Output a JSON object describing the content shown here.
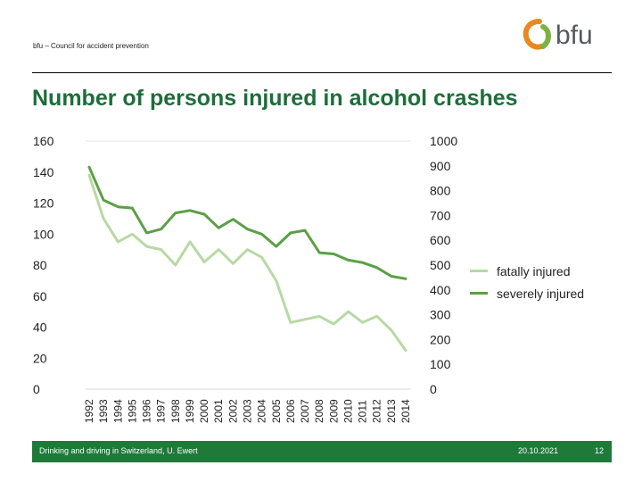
{
  "header": {
    "org_name": "bfu – Council for accident prevention",
    "logo_text": "bfu",
    "title": "Number of persons injured in alcohol crashes"
  },
  "footer": {
    "source": "Drinking and driving in Switzerland, U. Ewert",
    "date": "20.10.2021",
    "page": "12"
  },
  "colors": {
    "fatally": "#b8d9a4",
    "severely": "#5aa046",
    "title": "#1d6e3a",
    "footer": "#1f7a3a",
    "logo_orange": "#e8891e",
    "logo_green": "#7bb342"
  },
  "chart_data": {
    "type": "line",
    "title": "Number of persons injured in alcohol crashes",
    "x": [
      "1992",
      "1993",
      "1994",
      "1995",
      "1996",
      "1997",
      "1998",
      "1999",
      "2000",
      "2001",
      "2002",
      "2003",
      "2004",
      "2005",
      "2006",
      "2007",
      "2008",
      "2009",
      "2010",
      "2011",
      "2012",
      "2013",
      "2014"
    ],
    "left_axis": {
      "ticks": [
        0,
        20,
        40,
        60,
        80,
        100,
        120,
        140,
        160
      ],
      "ylim": [
        0,
        160
      ]
    },
    "right_axis": {
      "ticks": [
        0,
        100,
        200,
        300,
        400,
        500,
        600,
        700,
        800,
        900,
        1000
      ],
      "ylim": [
        0,
        1000
      ]
    },
    "series": [
      {
        "name": "fatally injured",
        "axis": "left",
        "color": "#b8d9a4",
        "values": [
          138,
          110,
          95,
          100,
          92,
          90,
          80,
          95,
          82,
          90,
          81,
          90,
          85,
          70,
          43,
          45,
          47,
          42,
          50,
          43,
          47,
          38,
          25
        ]
      },
      {
        "name": "severely injured",
        "axis": "right",
        "color": "#5aa046",
        "values": [
          895,
          762,
          735,
          730,
          630,
          645,
          710,
          720,
          705,
          650,
          685,
          645,
          625,
          575,
          630,
          640,
          550,
          545,
          520,
          510,
          490,
          455,
          445
        ]
      }
    ],
    "legend_position": "right",
    "grid": false
  }
}
